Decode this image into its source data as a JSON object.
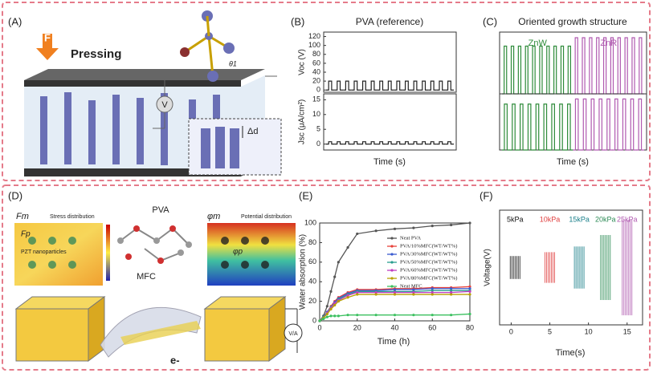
{
  "panels": {
    "a": {
      "label": "(A)",
      "force": "F",
      "action": "Pressing",
      "meter": "V",
      "gap": "Δd",
      "angle": "θ1"
    },
    "d": {
      "label": "(D)",
      "stress_symbol": "Fm",
      "stress_title": "Stress distribution",
      "particle_symbol": "Fp",
      "particle_name": "PZT nanoparticles",
      "polymer": "PVA",
      "fiber": "MFC",
      "potential_symbol": "φm",
      "potential_title": "Potential distribution",
      "particle_potential": "φp",
      "electron": "e-",
      "meter": "V/A"
    }
  },
  "chart_data": [
    {
      "type": "pulse",
      "panel_label": "(B)",
      "title": "PVA (reference)",
      "y_label": "Voc (V)",
      "ylim": [
        -5,
        130
      ],
      "yticks": [
        0,
        20,
        40,
        60,
        80,
        100,
        120
      ],
      "series": [
        {
          "color": "#222222",
          "values": [
            20,
            20,
            20,
            20,
            20,
            20,
            20,
            20,
            20,
            20,
            20,
            20,
            20,
            20,
            20
          ]
        }
      ]
    },
    {
      "type": "pulse",
      "y_label": "Jsc (μA/cm²)",
      "x_label": "Time (s)",
      "ylim": [
        -2,
        17
      ],
      "yticks": [
        0,
        5,
        10,
        15
      ],
      "series": [
        {
          "color": "#222222",
          "values": [
            0.8,
            0.8,
            0.8,
            0.8,
            0.8,
            0.8,
            0.8,
            0.8,
            0.8,
            0.8,
            0.8,
            0.8,
            0.8,
            0.8,
            0.8
          ]
        }
      ]
    },
    {
      "type": "pulse",
      "panel_label": "(C)",
      "title": "Oriented growth structure",
      "ylim": [
        0,
        1.1
      ],
      "series": [
        {
          "name": "ZnW",
          "color": "#2e8b3a",
          "values": [
            0.85,
            0.85,
            0.85,
            0.85,
            0.85,
            0.85,
            0.85,
            0.85,
            0.85,
            0.85
          ]
        },
        {
          "name": "ZnR",
          "color": "#b05ab0",
          "values": [
            1,
            1,
            1,
            1,
            1,
            1,
            1,
            1,
            1,
            1
          ]
        }
      ]
    },
    {
      "type": "pulse",
      "x_label": "Time (s)",
      "ylim": [
        0,
        1.1
      ],
      "series": [
        {
          "color": "#2e8b3a",
          "values": [
            0.9,
            0.9,
            0.9,
            0.9,
            0.9,
            0.9,
            0.9,
            0.9,
            0.9
          ]
        },
        {
          "color": "#b05ab0",
          "values": [
            1,
            1,
            1,
            1,
            1,
            1,
            1,
            1,
            1
          ]
        }
      ]
    },
    {
      "type": "line",
      "panel_label": "(E)",
      "y_label": "Water absorption (%)",
      "x_label": "Time (h)",
      "xlim": [
        0,
        80
      ],
      "ylim": [
        0,
        100
      ],
      "xticks": [
        0,
        20,
        40,
        60,
        80
      ],
      "yticks": [
        0,
        20,
        40,
        60,
        80,
        100
      ],
      "x": [
        0,
        2,
        4,
        6,
        8,
        10,
        15,
        20,
        30,
        40,
        50,
        60,
        70,
        80
      ],
      "series": [
        {
          "name": "Neat PVA",
          "color": "#555555",
          "values": [
            0,
            5,
            15,
            30,
            45,
            60,
            75,
            89,
            92,
            94,
            95,
            97,
            98,
            100
          ]
        },
        {
          "name": "PVA/10%MFC(WT/WT%)",
          "color": "#e8413a",
          "values": [
            0,
            4,
            9,
            15,
            20,
            24,
            29,
            32,
            32,
            33,
            33,
            34,
            34,
            35
          ]
        },
        {
          "name": "PVA/30%MFC(WT/WT%)",
          "color": "#3a5bd0",
          "values": [
            0,
            4,
            9,
            14,
            19,
            23,
            28,
            31,
            31,
            32,
            32,
            33,
            33,
            33
          ]
        },
        {
          "name": "PVA/50%MFC(WT/WT%)",
          "color": "#2a9d8f",
          "values": [
            0,
            4,
            8,
            14,
            18,
            22,
            27,
            30,
            30,
            30,
            30,
            31,
            31,
            31
          ]
        },
        {
          "name": "PVA/60%MFC(WT/WT%)",
          "color": "#c03cc0",
          "values": [
            0,
            3,
            8,
            13,
            18,
            21,
            26,
            29,
            29,
            29,
            29,
            29,
            29,
            30
          ]
        },
        {
          "name": "PVA/80%MFC(WT/WT%)",
          "color": "#b8a000",
          "values": [
            0,
            3,
            7,
            12,
            16,
            20,
            24,
            27,
            27,
            27,
            27,
            27,
            27,
            27
          ]
        },
        {
          "name": "Neat MFC",
          "color": "#3cc060",
          "values": [
            0,
            2,
            4,
            5,
            5,
            5,
            6,
            6,
            6,
            6,
            6,
            6,
            6,
            7
          ]
        }
      ]
    },
    {
      "type": "spikes",
      "panel_label": "(F)",
      "y_label": "Voltage(V)",
      "x_label": "Time(s)",
      "xlim": [
        -1.5,
        17
      ],
      "ylim": [
        -15,
        15
      ],
      "xticks": [
        0,
        5,
        10,
        15
      ],
      "series": [
        {
          "name": "5kPa",
          "color": "#111111",
          "x": [
            0.5
          ],
          "values": [
            3
          ]
        },
        {
          "name": "10kPa",
          "color": "#e04040",
          "x": [
            5
          ],
          "values": [
            4
          ]
        },
        {
          "name": "15kPa",
          "color": "#1a7f8a",
          "x": [
            8.8
          ],
          "values": [
            5.5
          ]
        },
        {
          "name": "20kPa",
          "color": "#2e8b57",
          "x": [
            12.2
          ],
          "values": [
            8.5
          ]
        },
        {
          "name": "25kPa",
          "color": "#b05ab0",
          "x": [
            15
          ],
          "values": [
            12.5
          ]
        }
      ]
    }
  ]
}
